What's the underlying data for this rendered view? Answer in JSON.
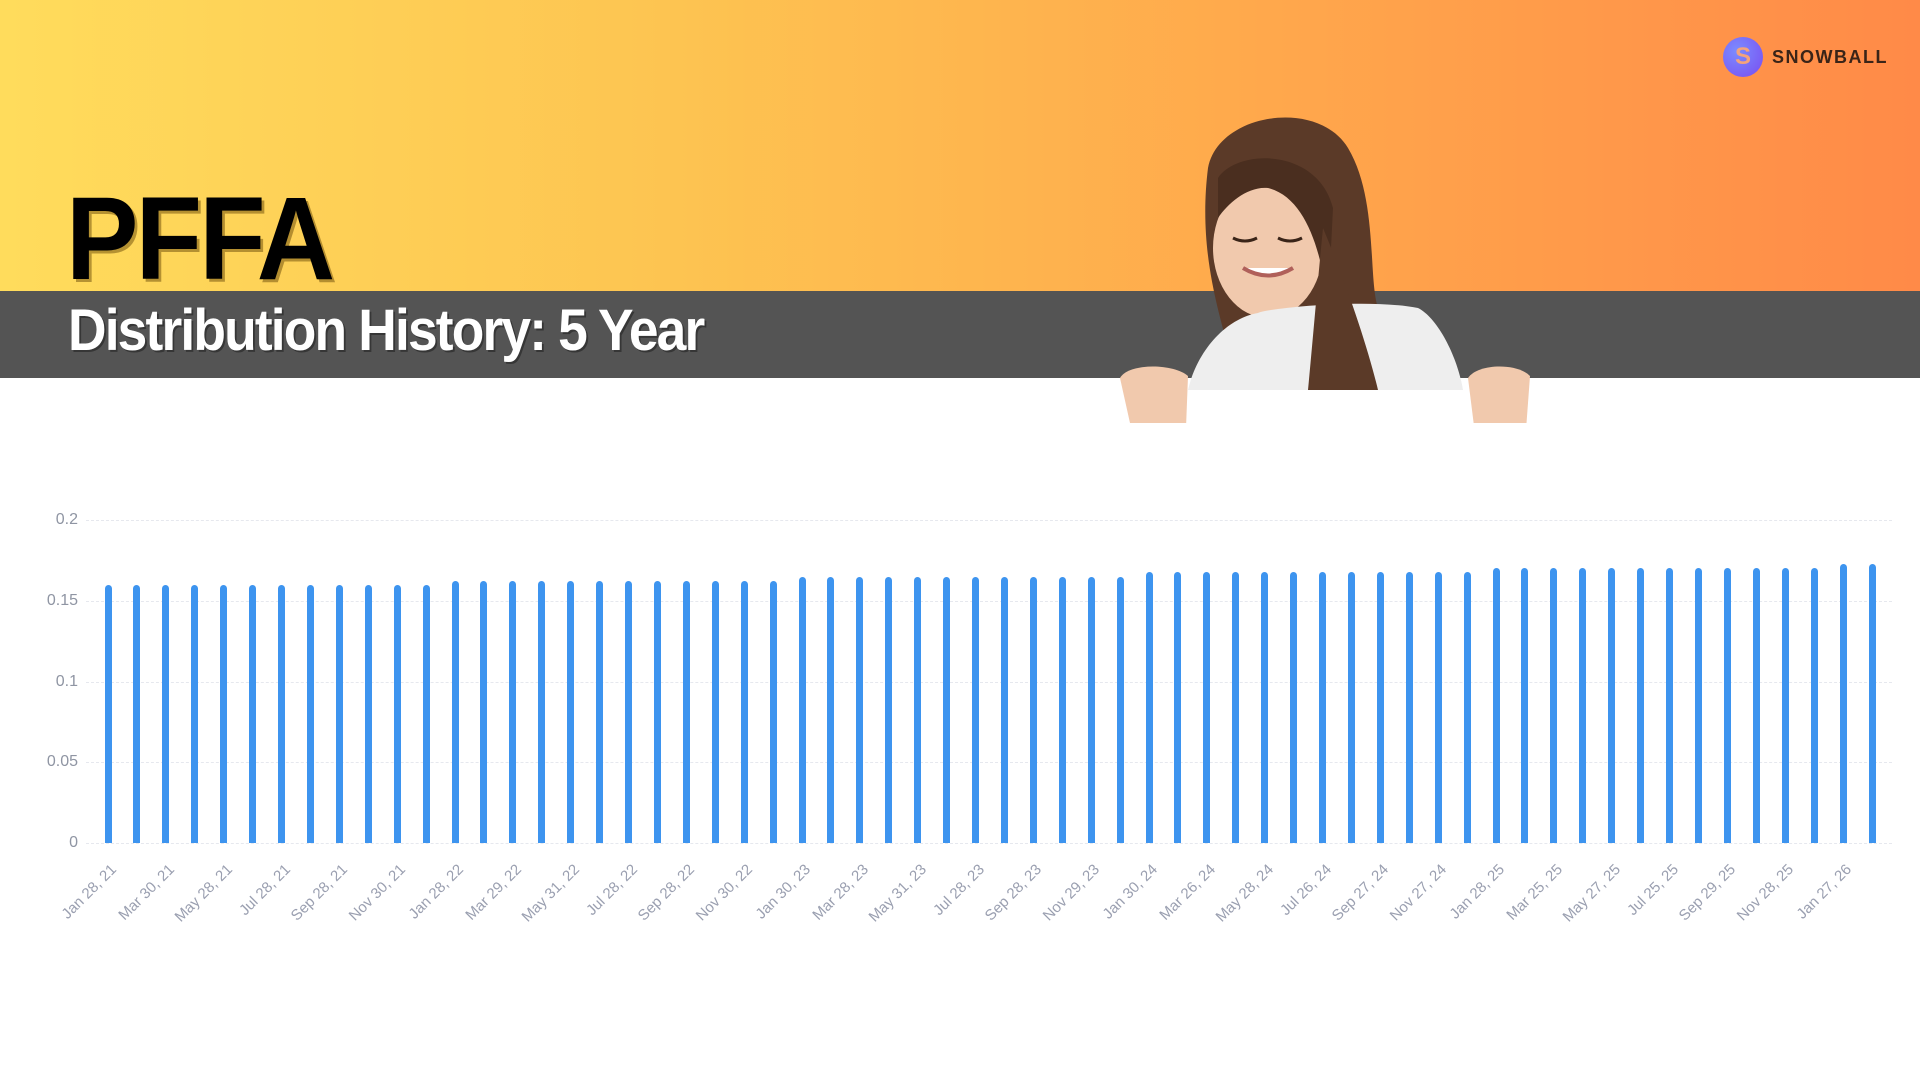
{
  "header": {
    "ticker": "PFFA",
    "subtitle": "Distribution History: 5 Year",
    "logo_letter": "S",
    "logo_text": "SNOWBALL",
    "colors": {
      "gradient_start": "#ffdc5c",
      "gradient_end": "#ff8a48",
      "band": "#545454",
      "bar": "#3d94ef"
    }
  },
  "chart_data": {
    "type": "bar",
    "title": "PFFA Distribution History: 5 Year",
    "xlabel": "",
    "ylabel": "",
    "ylim": [
      0,
      0.2
    ],
    "yticks": [
      "0",
      "0.05",
      "0.1",
      "0.15",
      "0.2"
    ],
    "grid": true,
    "legend": null,
    "xtick_labels": [
      "Jan 28, 21",
      "Mar 30, 21",
      "May 28, 21",
      "Jul 28, 21",
      "Sep 28, 21",
      "Nov 30, 21",
      "Jan 28, 22",
      "Mar 29, 22",
      "May 31, 22",
      "Jul 28, 22",
      "Sep 28, 22",
      "Nov 30, 22",
      "Jan 30, 23",
      "Mar 28, 23",
      "May 31, 23",
      "Jul 28, 23",
      "Sep 28, 23",
      "Nov 29, 23",
      "Jan 30, 24",
      "Mar 26, 24",
      "May 28, 24",
      "Jul 26, 24",
      "Sep 27, 24",
      "Nov 27, 24",
      "Jan 28, 25",
      "Mar 25, 25",
      "May 27, 25",
      "Jul 25, 25",
      "Sep 29, 25",
      "Nov 28, 25",
      "Jan 27, 26"
    ],
    "values": [
      0.16,
      0.16,
      0.16,
      0.16,
      0.16,
      0.16,
      0.16,
      0.16,
      0.16,
      0.16,
      0.16,
      0.16,
      0.1625,
      0.1625,
      0.1625,
      0.1625,
      0.1625,
      0.1625,
      0.1625,
      0.1625,
      0.1625,
      0.1625,
      0.1625,
      0.1625,
      0.165,
      0.165,
      0.165,
      0.165,
      0.165,
      0.165,
      0.165,
      0.165,
      0.165,
      0.165,
      0.165,
      0.165,
      0.1675,
      0.1675,
      0.1675,
      0.1675,
      0.1675,
      0.1675,
      0.1675,
      0.1675,
      0.1675,
      0.1675,
      0.1675,
      0.1675,
      0.17,
      0.17,
      0.17,
      0.17,
      0.17,
      0.17,
      0.17,
      0.17,
      0.17,
      0.17,
      0.17,
      0.17,
      0.1725,
      0.1725
    ]
  }
}
